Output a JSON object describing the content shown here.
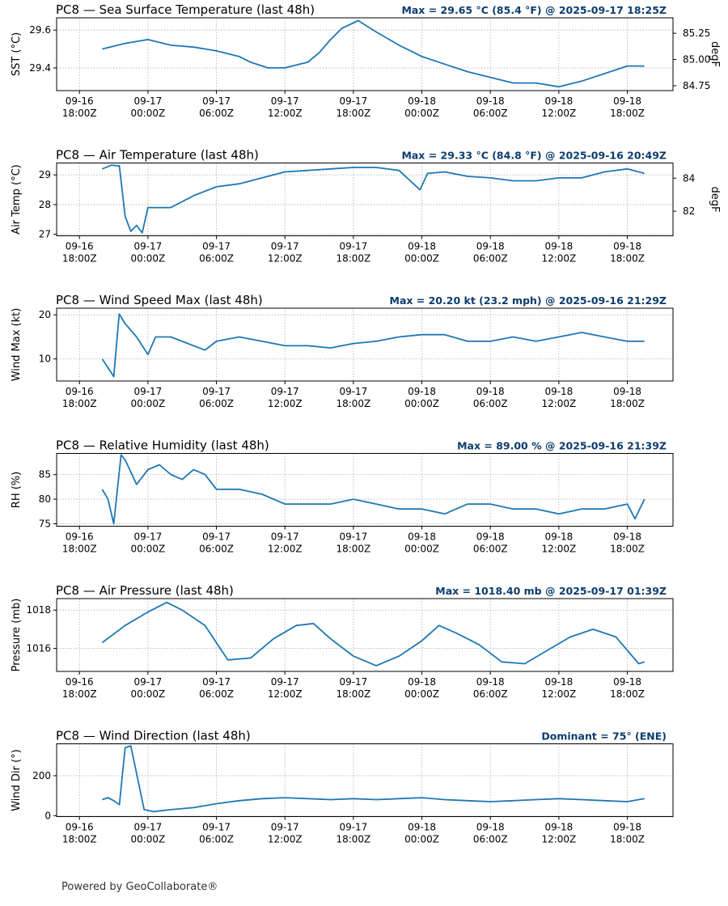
{
  "footer": "Powered by GeoCollaborate®",
  "colors": {
    "line": "#1f77b4",
    "annotation": "#0b3c6e",
    "grid": "#b0b0b0",
    "axis": "#000000"
  },
  "x_axis": {
    "range": [
      "2025-09-16T16:00Z",
      "2025-09-18T22:00Z"
    ],
    "ticks": [
      {
        "t": "2025-09-16T18:00Z",
        "l1": "09-16",
        "l2": "18:00Z"
      },
      {
        "t": "2025-09-17T00:00Z",
        "l1": "09-17",
        "l2": "00:00Z"
      },
      {
        "t": "2025-09-17T06:00Z",
        "l1": "09-17",
        "l2": "06:00Z"
      },
      {
        "t": "2025-09-17T12:00Z",
        "l1": "09-17",
        "l2": "12:00Z"
      },
      {
        "t": "2025-09-17T18:00Z",
        "l1": "09-17",
        "l2": "18:00Z"
      },
      {
        "t": "2025-09-18T00:00Z",
        "l1": "09-18",
        "l2": "00:00Z"
      },
      {
        "t": "2025-09-18T06:00Z",
        "l1": "09-18",
        "l2": "06:00Z"
      },
      {
        "t": "2025-09-18T12:00Z",
        "l1": "09-18",
        "l2": "12:00Z"
      },
      {
        "t": "2025-09-18T18:00Z",
        "l1": "09-18",
        "l2": "18:00Z"
      }
    ]
  },
  "chart_data": [
    {
      "type": "line",
      "title": "PC8 — Sea Surface Temperature (last 48h)",
      "annotation": "Max = 29.65 °C (85.4 °F) @ 2025-09-17 18:25Z",
      "ylabel": "SST (°C)",
      "ylim": [
        29.28,
        29.665
      ],
      "yticks": [
        29.4,
        29.6
      ],
      "yticklabels": [
        "29.4",
        "29.6"
      ],
      "secondary_axis": {
        "label": "degF",
        "ticks": [
          84.75,
          85.0,
          85.25
        ],
        "ticklabels": [
          "84.75",
          "85.00",
          "85.25"
        ],
        "conversion": "F=C*1.8+32"
      },
      "grid": true,
      "series": [
        {
          "x": [
            "2025-09-16T20:00Z",
            "2025-09-16T22:00Z",
            "2025-09-17T00:00Z",
            "2025-09-17T02:00Z",
            "2025-09-17T04:00Z",
            "2025-09-17T06:00Z",
            "2025-09-17T08:00Z",
            "2025-09-17T09:00Z",
            "2025-09-17T10:30Z",
            "2025-09-17T12:00Z",
            "2025-09-17T14:00Z",
            "2025-09-17T15:00Z",
            "2025-09-17T16:00Z",
            "2025-09-17T17:00Z",
            "2025-09-17T18:25Z",
            "2025-09-17T20:00Z",
            "2025-09-17T22:00Z",
            "2025-09-18T00:00Z",
            "2025-09-18T02:00Z",
            "2025-09-18T04:00Z",
            "2025-09-18T06:00Z",
            "2025-09-18T08:00Z",
            "2025-09-18T10:00Z",
            "2025-09-18T12:00Z",
            "2025-09-18T14:00Z",
            "2025-09-18T16:00Z",
            "2025-09-18T18:00Z",
            "2025-09-18T19:30Z"
          ],
          "y": [
            29.5,
            29.53,
            29.55,
            29.52,
            29.51,
            29.49,
            29.46,
            29.43,
            29.4,
            29.4,
            29.43,
            29.48,
            29.55,
            29.61,
            29.65,
            29.59,
            29.52,
            29.46,
            29.42,
            29.38,
            29.35,
            29.32,
            29.32,
            29.3,
            29.33,
            29.37,
            29.41,
            29.41
          ]
        }
      ]
    },
    {
      "type": "line",
      "title": "PC8 — Air Temperature (last 48h)",
      "annotation": "Max = 29.33 °C (84.8 °F) @ 2025-09-16 20:49Z",
      "ylabel": "Air Temp (°C)",
      "ylim": [
        26.95,
        29.4
      ],
      "yticks": [
        27,
        28,
        29
      ],
      "yticklabels": [
        "27",
        "28",
        "29"
      ],
      "secondary_axis": {
        "label": "degF",
        "ticks": [
          82,
          84
        ],
        "ticklabels": [
          "82",
          "84"
        ],
        "conversion": "F=C*1.8+32"
      },
      "grid": true,
      "series": [
        {
          "x": [
            "2025-09-16T20:00Z",
            "2025-09-16T20:49Z",
            "2025-09-16T21:30Z",
            "2025-09-16T22:00Z",
            "2025-09-16T22:30Z",
            "2025-09-16T23:00Z",
            "2025-09-16T23:30Z",
            "2025-09-17T00:00Z",
            "2025-09-17T02:00Z",
            "2025-09-17T04:00Z",
            "2025-09-17T06:00Z",
            "2025-09-17T08:00Z",
            "2025-09-17T10:00Z",
            "2025-09-17T12:00Z",
            "2025-09-17T14:00Z",
            "2025-09-17T16:00Z",
            "2025-09-17T18:00Z",
            "2025-09-17T20:00Z",
            "2025-09-17T22:00Z",
            "2025-09-17T23:50Z",
            "2025-09-18T00:30Z",
            "2025-09-18T02:00Z",
            "2025-09-18T04:00Z",
            "2025-09-18T06:00Z",
            "2025-09-18T08:00Z",
            "2025-09-18T10:00Z",
            "2025-09-18T12:00Z",
            "2025-09-18T14:00Z",
            "2025-09-18T16:00Z",
            "2025-09-18T18:00Z",
            "2025-09-18T19:30Z"
          ],
          "y": [
            29.2,
            29.33,
            29.3,
            27.6,
            27.1,
            27.3,
            27.05,
            27.9,
            27.9,
            28.3,
            28.6,
            28.7,
            28.9,
            29.1,
            29.15,
            29.2,
            29.25,
            29.25,
            29.15,
            28.5,
            29.05,
            29.1,
            28.95,
            28.9,
            28.8,
            28.8,
            28.9,
            28.9,
            29.1,
            29.2,
            29.05
          ]
        }
      ]
    },
    {
      "type": "line",
      "title": "PC8 — Wind Speed Max (last 48h)",
      "annotation": "Max = 20.20 kt (23.2 mph) @ 2025-09-16 21:29Z",
      "ylabel": "Wind Max (kt)",
      "ylim": [
        5,
        21.5
      ],
      "yticks": [
        10,
        20
      ],
      "yticklabels": [
        "10",
        "20"
      ],
      "grid": true,
      "series": [
        {
          "x": [
            "2025-09-16T20:00Z",
            "2025-09-16T20:30Z",
            "2025-09-16T21:00Z",
            "2025-09-16T21:29Z",
            "2025-09-16T22:00Z",
            "2025-09-16T23:00Z",
            "2025-09-17T00:00Z",
            "2025-09-17T00:40Z",
            "2025-09-17T02:00Z",
            "2025-09-17T04:00Z",
            "2025-09-17T05:00Z",
            "2025-09-17T06:00Z",
            "2025-09-17T08:00Z",
            "2025-09-17T10:00Z",
            "2025-09-17T12:00Z",
            "2025-09-17T14:00Z",
            "2025-09-17T16:00Z",
            "2025-09-17T18:00Z",
            "2025-09-17T20:00Z",
            "2025-09-17T22:00Z",
            "2025-09-18T00:00Z",
            "2025-09-18T02:00Z",
            "2025-09-18T04:00Z",
            "2025-09-18T06:00Z",
            "2025-09-18T08:00Z",
            "2025-09-18T10:00Z",
            "2025-09-18T12:00Z",
            "2025-09-18T14:00Z",
            "2025-09-18T16:00Z",
            "2025-09-18T18:00Z",
            "2025-09-18T19:30Z"
          ],
          "y": [
            10,
            8,
            6,
            20.2,
            18,
            15,
            11,
            15,
            15,
            13,
            12,
            14,
            15,
            14,
            13,
            13,
            12.5,
            13.5,
            14,
            15,
            15.5,
            15.5,
            14,
            14,
            15,
            14,
            15,
            16,
            15,
            14,
            14
          ]
        }
      ]
    },
    {
      "type": "line",
      "title": "PC8 — Relative Humidity (last 48h)",
      "annotation": "Max = 89.00 % @ 2025-09-16 21:39Z",
      "ylabel": "RH (%)",
      "ylim": [
        74.5,
        89.3
      ],
      "yticks": [
        75,
        80,
        85
      ],
      "yticklabels": [
        "75",
        "80",
        "85"
      ],
      "grid": true,
      "series": [
        {
          "x": [
            "2025-09-16T20:00Z",
            "2025-09-16T20:30Z",
            "2025-09-16T21:00Z",
            "2025-09-16T21:39Z",
            "2025-09-16T22:00Z",
            "2025-09-16T23:00Z",
            "2025-09-17T00:00Z",
            "2025-09-17T01:00Z",
            "2025-09-17T02:00Z",
            "2025-09-17T03:00Z",
            "2025-09-17T04:00Z",
            "2025-09-17T05:00Z",
            "2025-09-17T06:00Z",
            "2025-09-17T08:00Z",
            "2025-09-17T10:00Z",
            "2025-09-17T12:00Z",
            "2025-09-17T14:00Z",
            "2025-09-17T16:00Z",
            "2025-09-17T18:00Z",
            "2025-09-17T20:00Z",
            "2025-09-17T22:00Z",
            "2025-09-18T00:00Z",
            "2025-09-18T02:00Z",
            "2025-09-18T04:00Z",
            "2025-09-18T06:00Z",
            "2025-09-18T08:00Z",
            "2025-09-18T10:00Z",
            "2025-09-18T12:00Z",
            "2025-09-18T14:00Z",
            "2025-09-18T16:00Z",
            "2025-09-18T18:00Z",
            "2025-09-18T18:40Z",
            "2025-09-18T19:30Z"
          ],
          "y": [
            82,
            80,
            75,
            89,
            88,
            83,
            86,
            87,
            85,
            84,
            86,
            85,
            82,
            82,
            81,
            79,
            79,
            79,
            80,
            79,
            78,
            78,
            77,
            79,
            79,
            78,
            78,
            77,
            78,
            78,
            79,
            76,
            80
          ]
        }
      ]
    },
    {
      "type": "line",
      "title": "PC8 — Air Pressure (last 48h)",
      "annotation": "Max = 1018.40 mb @ 2025-09-17 01:39Z",
      "ylabel": "Pressure (mb)",
      "ylim": [
        1014.8,
        1018.6
      ],
      "yticks": [
        1016,
        1018
      ],
      "yticklabels": [
        "1016",
        "1018"
      ],
      "grid": true,
      "series": [
        {
          "x": [
            "2025-09-16T20:00Z",
            "2025-09-16T22:00Z",
            "2025-09-17T00:00Z",
            "2025-09-17T01:39Z",
            "2025-09-17T03:00Z",
            "2025-09-17T05:00Z",
            "2025-09-17T07:00Z",
            "2025-09-17T09:00Z",
            "2025-09-17T11:00Z",
            "2025-09-17T13:00Z",
            "2025-09-17T14:30Z",
            "2025-09-17T16:00Z",
            "2025-09-17T18:00Z",
            "2025-09-17T20:00Z",
            "2025-09-17T22:00Z",
            "2025-09-18T00:00Z",
            "2025-09-18T01:30Z",
            "2025-09-18T03:00Z",
            "2025-09-18T05:00Z",
            "2025-09-18T07:00Z",
            "2025-09-18T09:00Z",
            "2025-09-18T11:00Z",
            "2025-09-18T13:00Z",
            "2025-09-18T15:00Z",
            "2025-09-18T17:00Z",
            "2025-09-18T19:00Z",
            "2025-09-18T19:30Z"
          ],
          "y": [
            1016.3,
            1017.2,
            1017.9,
            1018.4,
            1018.0,
            1017.2,
            1015.4,
            1015.5,
            1016.5,
            1017.2,
            1017.3,
            1016.5,
            1015.6,
            1015.1,
            1015.6,
            1016.4,
            1017.2,
            1016.8,
            1016.2,
            1015.3,
            1015.2,
            1015.9,
            1016.6,
            1017.0,
            1016.6,
            1015.2,
            1015.3
          ]
        }
      ]
    },
    {
      "type": "line",
      "title": "PC8 — Wind Direction (last 48h)",
      "annotation": "Dominant = 75° (ENE)",
      "ylabel": "Wind Dir (°)",
      "ylim": [
        -5,
        360
      ],
      "yticks": [
        0,
        200
      ],
      "yticklabels": [
        "0",
        "200"
      ],
      "grid": true,
      "series": [
        {
          "x": [
            "2025-09-16T20:00Z",
            "2025-09-16T20:30Z",
            "2025-09-16T21:00Z",
            "2025-09-16T21:30Z",
            "2025-09-16T22:00Z",
            "2025-09-16T22:30Z",
            "2025-09-16T23:40Z",
            "2025-09-17T00:30Z",
            "2025-09-17T02:00Z",
            "2025-09-17T04:00Z",
            "2025-09-17T06:00Z",
            "2025-09-17T08:00Z",
            "2025-09-17T10:00Z",
            "2025-09-17T12:00Z",
            "2025-09-17T14:00Z",
            "2025-09-17T16:00Z",
            "2025-09-17T18:00Z",
            "2025-09-17T20:00Z",
            "2025-09-17T22:00Z",
            "2025-09-18T00:00Z",
            "2025-09-18T02:00Z",
            "2025-09-18T04:00Z",
            "2025-09-18T06:00Z",
            "2025-09-18T08:00Z",
            "2025-09-18T10:00Z",
            "2025-09-18T12:00Z",
            "2025-09-18T14:00Z",
            "2025-09-18T16:00Z",
            "2025-09-18T18:00Z",
            "2025-09-18T19:30Z"
          ],
          "y": [
            80,
            90,
            75,
            55,
            340,
            350,
            30,
            20,
            30,
            40,
            60,
            75,
            85,
            90,
            85,
            80,
            85,
            80,
            85,
            90,
            80,
            75,
            70,
            75,
            80,
            85,
            80,
            75,
            70,
            85
          ]
        }
      ]
    }
  ]
}
